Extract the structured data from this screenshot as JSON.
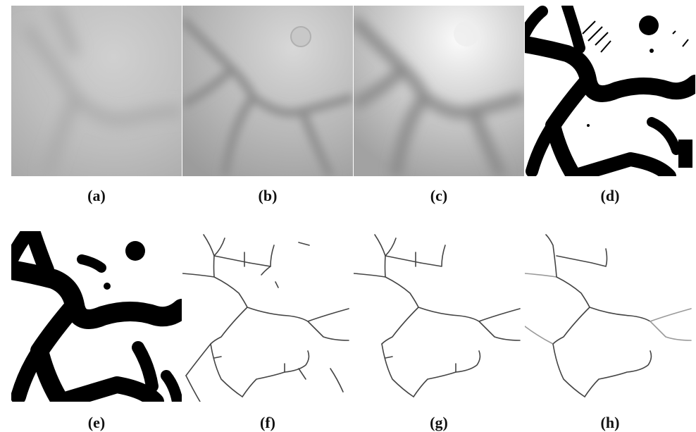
{
  "figure": {
    "panels": [
      {
        "id": "a",
        "label": "(a)",
        "content": "raw image"
      },
      {
        "id": "b",
        "label": "(b)",
        "content": "enhanced image"
      },
      {
        "id": "c",
        "label": "(c)",
        "content": "smoothed image"
      },
      {
        "id": "d",
        "label": "(d)",
        "content": "binary segmentation"
      },
      {
        "id": "e",
        "label": "(e)",
        "content": "cleaned binary mask"
      },
      {
        "id": "f",
        "label": "(f)",
        "content": "skeleton"
      },
      {
        "id": "g",
        "label": "(g)",
        "content": "pruned skeleton"
      },
      {
        "id": "h",
        "label": "(h)",
        "content": "final skeleton"
      }
    ]
  },
  "colors": {
    "background": "#ffffff",
    "ink": "#000000",
    "skeleton": "#444444",
    "skeleton_light": "#9a9a9a"
  }
}
